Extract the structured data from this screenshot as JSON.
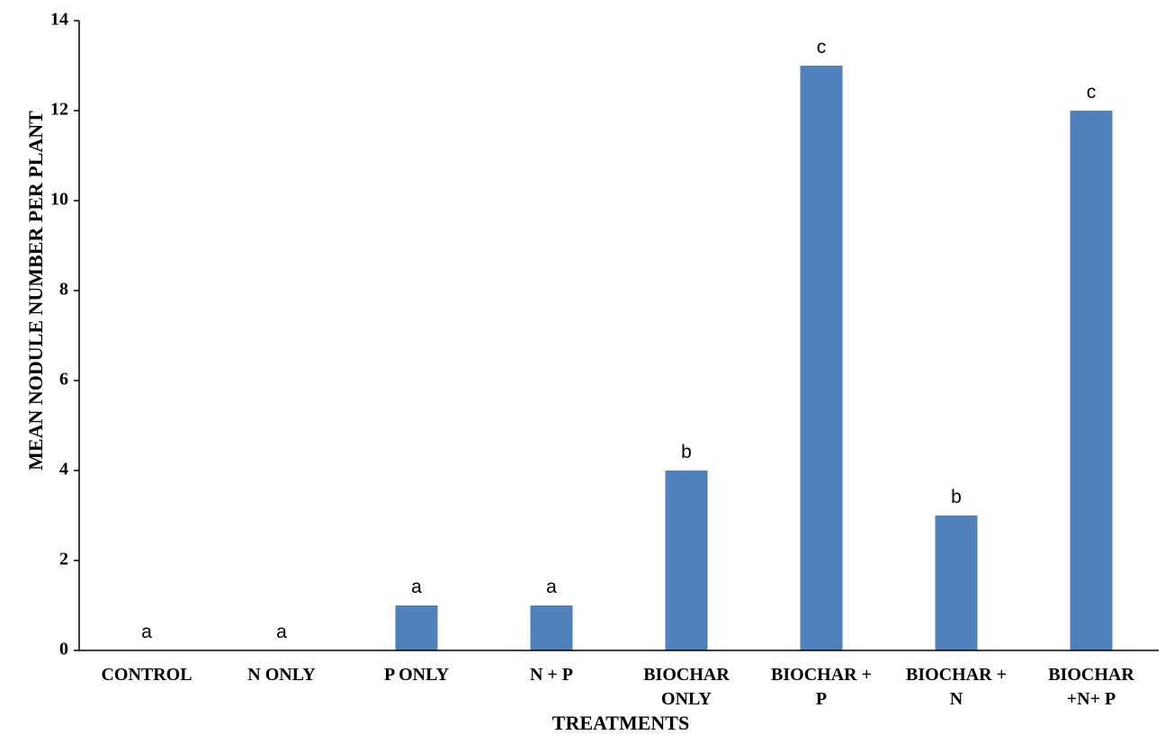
{
  "chart_data": {
    "type": "bar",
    "title": "",
    "xlabel": "TREATMENTS",
    "ylabel": "MEAN NODULE NUMBER PER PLANT",
    "ylim": [
      0,
      14
    ],
    "yticks": [
      0,
      2,
      4,
      6,
      8,
      10,
      12,
      14
    ],
    "grid": false,
    "legend": "none",
    "bar_color": "#4F81BD",
    "categories": [
      [
        "CONTROL"
      ],
      [
        "N ONLY"
      ],
      [
        "P ONLY"
      ],
      [
        "N + P"
      ],
      [
        "BIOCHAR",
        "ONLY"
      ],
      [
        "BIOCHAR +",
        "P"
      ],
      [
        "BIOCHAR +",
        "N"
      ],
      [
        "BIOCHAR",
        "+N+ P"
      ]
    ],
    "series": [
      {
        "values": [
          0,
          0,
          1,
          1,
          4,
          13,
          3,
          12
        ],
        "data_labels": [
          "a",
          "a",
          "a",
          "a",
          "b",
          "c",
          "b",
          "c"
        ]
      }
    ]
  }
}
